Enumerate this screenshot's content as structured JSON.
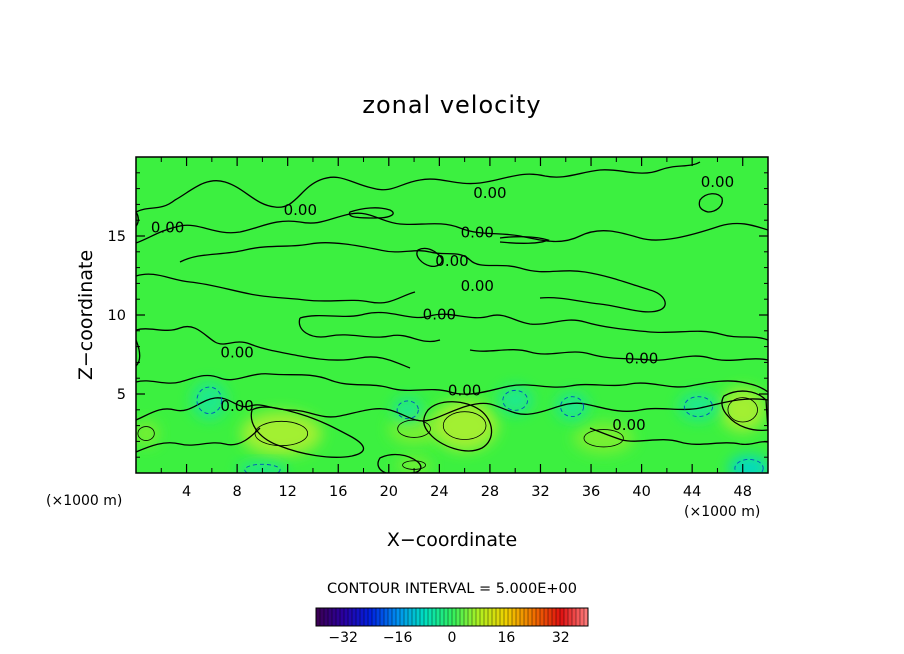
{
  "chart_data": {
    "type": "heatmap",
    "title": "zonal velocity",
    "xlabel": "X−coordinate",
    "ylabel": "Z−coordinate",
    "x_unit_left": "(×1000 m)",
    "x_unit_right": "(×1000 m)",
    "xlim": [
      0,
      50
    ],
    "ylim": [
      0,
      20
    ],
    "x_ticks": [
      4,
      8,
      12,
      16,
      20,
      24,
      28,
      32,
      36,
      40,
      44,
      48
    ],
    "y_ticks": [
      5,
      10,
      15
    ],
    "contour_interval_text": "CONTOUR INTERVAL = 5.000E+00",
    "contour_label": "0.00",
    "contour_labels": [
      {
        "x": 2.5,
        "z": 15.5
      },
      {
        "x": 13.0,
        "z": 16.6
      },
      {
        "x": 28.0,
        "z": 17.7
      },
      {
        "x": 46.0,
        "z": 18.4
      },
      {
        "x": 27.0,
        "z": 15.2
      },
      {
        "x": 25.0,
        "z": 13.4
      },
      {
        "x": 27.0,
        "z": 11.8
      },
      {
        "x": 24.0,
        "z": 10.0
      },
      {
        "x": 8.0,
        "z": 7.6
      },
      {
        "x": 40.0,
        "z": 7.2
      },
      {
        "x": 26.0,
        "z": 5.2
      },
      {
        "x": 8.0,
        "z": 4.2
      },
      {
        "x": 39.0,
        "z": 3.0
      }
    ],
    "colorbar": {
      "range": [
        -40,
        40
      ],
      "ticks": [
        -32,
        -16,
        0,
        16,
        32
      ],
      "colors": [
        "#3c0050",
        "#2a00a0",
        "#0020e0",
        "#0090f0",
        "#00e0c0",
        "#30f060",
        "#b0f020",
        "#f0d000",
        "#f07000",
        "#e01010",
        "#ff8080"
      ]
    },
    "background_value": 0,
    "positive_regions": [
      {
        "x": 11.5,
        "z": 2.5,
        "rx": 3.2,
        "rz": 1.4,
        "value": 6
      },
      {
        "x": 22.0,
        "z": 2.8,
        "rx": 2.0,
        "rz": 1.0,
        "value": 3
      },
      {
        "x": 26.0,
        "z": 3.0,
        "rx": 2.6,
        "rz": 1.6,
        "value": 7
      },
      {
        "x": 37.0,
        "z": 2.2,
        "rx": 2.4,
        "rz": 1.0,
        "value": 4
      },
      {
        "x": 48.0,
        "z": 4.0,
        "rx": 1.8,
        "rz": 1.4,
        "value": 6
      },
      {
        "x": 22.0,
        "z": 0.5,
        "rx": 1.4,
        "rz": 0.5,
        "value": 5
      },
      {
        "x": 0.8,
        "z": 2.5,
        "rx": 1.0,
        "rz": 0.8,
        "value": 4
      }
    ],
    "negative_regions": [
      {
        "x": 5.8,
        "z": 4.6,
        "rx": 1.4,
        "rz": 1.2,
        "value": -6
      },
      {
        "x": 21.5,
        "z": 4.0,
        "rx": 1.2,
        "rz": 0.8,
        "value": -4
      },
      {
        "x": 30.0,
        "z": 4.6,
        "rx": 1.4,
        "rz": 0.9,
        "value": -3
      },
      {
        "x": 34.5,
        "z": 4.2,
        "rx": 1.3,
        "rz": 0.9,
        "value": -3
      },
      {
        "x": 44.5,
        "z": 4.2,
        "rx": 1.6,
        "rz": 0.9,
        "value": -4
      },
      {
        "x": 48.5,
        "z": 0.3,
        "rx": 1.6,
        "rz": 0.8,
        "value": -9
      },
      {
        "x": 10.0,
        "z": 0.2,
        "rx": 2.0,
        "rz": 0.5,
        "value": -3
      }
    ],
    "grid": false,
    "legend": "colorbar at bottom"
  }
}
